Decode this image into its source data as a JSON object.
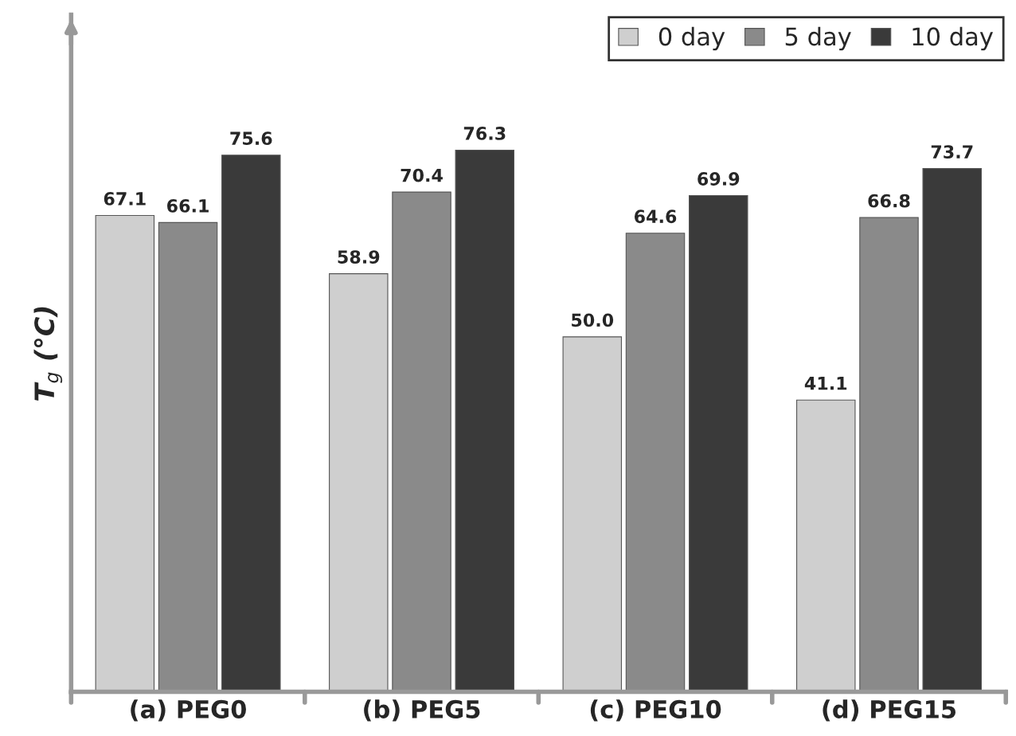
{
  "chart_data": {
    "type": "bar",
    "ylabel": "T$_{g}$ (°C)",
    "categories": [
      "(a) PEG0",
      "(b) PEG5",
      "(c) PEG10",
      "(d) PEG15"
    ],
    "series": [
      {
        "name": "0 day",
        "color": "#cfcfcf",
        "values": [
          67.1,
          58.9,
          50.0,
          41.1
        ],
        "value_labels": [
          "67.1",
          "58.9",
          "50.0",
          "41.1"
        ]
      },
      {
        "name": "5 day",
        "color": "#8a8a8a",
        "values": [
          66.1,
          70.4,
          64.6,
          66.8
        ],
        "value_labels": [
          "66.1",
          "70.4",
          "64.6",
          "66.8"
        ]
      },
      {
        "name": "10 day",
        "color": "#3a3a3a",
        "values": [
          75.6,
          76.3,
          69.9,
          73.7
        ],
        "value_labels": [
          "75.6",
          "76.3",
          "69.9",
          "73.7"
        ]
      }
    ],
    "tick_labels": "x",
    "legend": "top right",
    "grid": false
  }
}
